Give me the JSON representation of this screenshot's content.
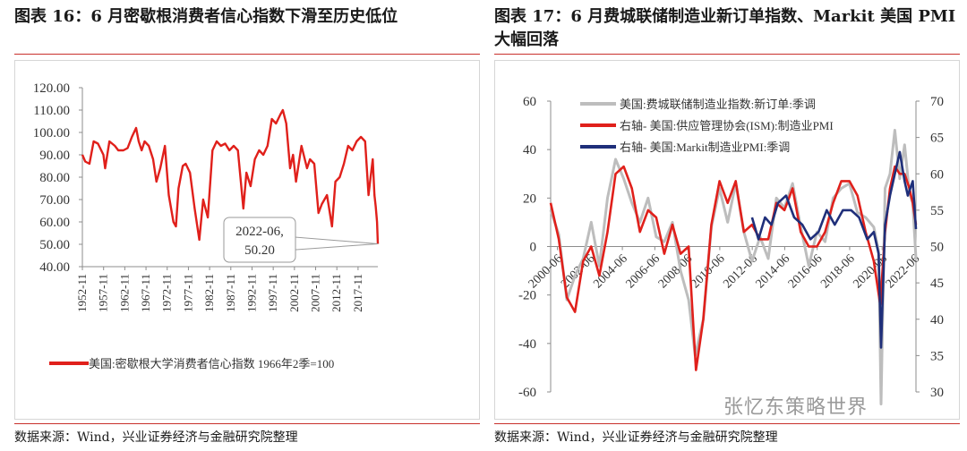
{
  "titles": {
    "left": "图表 16：6 月密歇根消费者信心指数下滑至历史低位",
    "right": "图表 17：6 月费城联储制造业新订单指数、Markit 美国 PMI 大幅回落"
  },
  "sources": {
    "left": "数据来源：Wind，兴业证券经济与金融研究院整理",
    "right": "数据来源：Wind，兴业证券经济与金融研究院整理"
  },
  "watermark": "张忆东策略世界",
  "colors": {
    "red": "#e0201b",
    "gray": "#bdbdbd",
    "navy": "#1f2f7a",
    "accent_rule": "#c9302c"
  },
  "chart_data": [
    {
      "type": "line",
      "title": "图表 16：6 月密歇根消费者信心指数下滑至历史低位",
      "ylim": [
        40,
        120
      ],
      "yticks": [
        "40.00",
        "50.00",
        "60.00",
        "70.00",
        "80.00",
        "90.00",
        "100.00",
        "110.00",
        "120.00"
      ],
      "xrange": [
        1952.83,
        2022.5
      ],
      "xticks": [
        "1952-11",
        "1957-11",
        "1962-11",
        "1967-11",
        "1972-11",
        "1977-11",
        "1982-11",
        "1987-11",
        "1992-11",
        "1997-11",
        "2002-11",
        "2007-11",
        "2012-11",
        "2017-11"
      ],
      "series": [
        {
          "name": "美国:密歇根大学消费者信心指数 1966年2季=100",
          "x": [
            1952.83,
            1953.5,
            1954.5,
            1955.5,
            1956.5,
            1957.8,
            1958.2,
            1959.2,
            1960.5,
            1961.3,
            1962.5,
            1963.5,
            1964.5,
            1965.5,
            1966.1,
            1966.8,
            1967.5,
            1968.5,
            1969.5,
            1970.3,
            1971.2,
            1972.3,
            1973.2,
            1974.3,
            1974.9,
            1975.5,
            1976.5,
            1977.2,
            1978.2,
            1979.3,
            1980.4,
            1981.3,
            1982.4,
            1983.5,
            1984.5,
            1985.5,
            1986.5,
            1987.5,
            1988.5,
            1989.5,
            1990.8,
            1991.5,
            1992.5,
            1993.5,
            1994.5,
            1995.5,
            1996.5,
            1997.5,
            1998.5,
            1999.5,
            2000.1,
            2000.9,
            2001.8,
            2002.5,
            2003.2,
            2004.5,
            2005.8,
            2006.5,
            2007.5,
            2008.5,
            2009.3,
            2010.5,
            2011.7,
            2012.5,
            2013.5,
            2014.5,
            2015.5,
            2016.5,
            2017.5,
            2018.5,
            2019.5,
            2020.3,
            2020.8,
            2021.3,
            2021.7,
            2022.0,
            2022.3,
            2022.5
          ],
          "y": [
            90,
            87,
            86,
            96,
            95,
            90,
            84,
            96,
            94,
            92,
            92,
            93,
            98,
            102,
            96,
            92,
            96,
            94,
            88,
            78,
            84,
            94,
            72,
            60,
            58,
            75,
            85,
            86,
            82,
            66,
            52,
            70,
            62,
            92,
            96,
            94,
            95,
            92,
            94,
            92,
            66,
            82,
            76,
            88,
            92,
            90,
            94,
            106,
            104,
            108,
            110,
            104,
            84,
            90,
            78,
            94,
            84,
            88,
            86,
            64,
            68,
            72,
            58,
            78,
            80,
            86,
            94,
            92,
            96,
            98,
            96,
            72,
            80,
            88,
            72,
            67,
            60,
            50.2
          ]
        }
      ],
      "annotation": {
        "date": "2022-06,",
        "value": "50.20"
      }
    },
    {
      "type": "line",
      "title": "图表 17：6 月费城联储制造业新订单指数、Markit 美国 PMI 大幅回落",
      "y_left": {
        "ylim": [
          -60,
          60
        ],
        "ticks": [
          "-60",
          "-40",
          "-20",
          "0",
          "20",
          "40",
          "60"
        ]
      },
      "y_right": {
        "ylim": [
          30,
          70
        ],
        "ticks": [
          "30",
          "35",
          "40",
          "45",
          "50",
          "55",
          "60",
          "65",
          "70"
        ]
      },
      "xrange": [
        2000.0,
        2022.5
      ],
      "xticks": [
        "2000-06",
        "2002-06",
        "2004-06",
        "2006-06",
        "2008-06",
        "2010-06",
        "2012-06",
        "2014-06",
        "2016-06",
        "2018-06",
        "2020-06",
        "2022-06"
      ],
      "series": [
        {
          "name": "美国:费城联储制造业指数:新订单:季调",
          "axis": "left",
          "x": [
            2000.0,
            2000.5,
            2001.0,
            2001.5,
            2002.0,
            2002.5,
            2003.0,
            2003.5,
            2004.0,
            2004.5,
            2005.0,
            2005.5,
            2006.0,
            2006.5,
            2007.0,
            2007.5,
            2008.0,
            2008.5,
            2008.9,
            2009.4,
            2009.9,
            2010.4,
            2010.9,
            2011.4,
            2011.9,
            2012.4,
            2012.9,
            2013.4,
            2013.9,
            2014.4,
            2014.9,
            2015.4,
            2015.9,
            2016.4,
            2016.9,
            2017.4,
            2017.9,
            2018.4,
            2018.9,
            2019.4,
            2019.9,
            2020.2,
            2020.35,
            2020.6,
            2020.9,
            2021.2,
            2021.5,
            2021.8,
            2022.1,
            2022.3,
            2022.5
          ],
          "y": [
            15,
            5,
            -22,
            -12,
            -5,
            10,
            -8,
            20,
            36,
            28,
            18,
            10,
            20,
            4,
            2,
            10,
            -10,
            -22,
            -45,
            -30,
            8,
            24,
            10,
            26,
            6,
            -6,
            4,
            -5,
            20,
            16,
            26,
            8,
            -8,
            6,
            2,
            20,
            24,
            26,
            14,
            12,
            8,
            -2,
            -65,
            24,
            30,
            48,
            28,
            42,
            22,
            18,
            -5
          ]
        },
        {
          "name": "右轴- 美国:供应管理协会(ISM):制造业PMI",
          "axis": "right",
          "x": [
            2000.0,
            2000.5,
            2001.0,
            2001.5,
            2002.0,
            2002.5,
            2003.0,
            2003.5,
            2004.0,
            2004.5,
            2005.0,
            2005.5,
            2006.0,
            2006.5,
            2007.0,
            2007.5,
            2008.0,
            2008.5,
            2008.95,
            2009.4,
            2009.9,
            2010.4,
            2010.9,
            2011.4,
            2011.9,
            2012.4,
            2012.9,
            2013.4,
            2013.9,
            2014.4,
            2014.9,
            2015.4,
            2015.9,
            2016.4,
            2016.9,
            2017.4,
            2017.9,
            2018.4,
            2018.9,
            2019.4,
            2019.9,
            2020.3,
            2020.6,
            2020.9,
            2021.2,
            2021.5,
            2021.8,
            2022.1,
            2022.3,
            2022.5
          ],
          "y": [
            56,
            51,
            43,
            41,
            48,
            50,
            46,
            52,
            60,
            61,
            58,
            52,
            55,
            54,
            49,
            53,
            49,
            50,
            33,
            40,
            53,
            59,
            56,
            59,
            52,
            53,
            51,
            51,
            56,
            55,
            58,
            52,
            50,
            50,
            52,
            56,
            59,
            59,
            57,
            52,
            48,
            42,
            52,
            58,
            61,
            60,
            60,
            58,
            56,
            53
          ]
        },
        {
          "name": "右轴- 美国:Markit制造业PMI:季调",
          "axis": "right",
          "x": [
            2012.4,
            2012.8,
            2013.2,
            2013.6,
            2014.0,
            2014.5,
            2015.0,
            2015.5,
            2016.0,
            2016.5,
            2017.0,
            2017.5,
            2018.0,
            2018.5,
            2019.0,
            2019.5,
            2019.9,
            2020.2,
            2020.35,
            2020.6,
            2020.9,
            2021.2,
            2021.5,
            2021.8,
            2022.0,
            2022.3,
            2022.5
          ],
          "y": [
            54,
            51,
            54,
            53,
            56,
            57,
            54,
            53,
            51,
            52,
            55,
            53,
            55,
            55,
            54,
            51,
            52,
            49,
            36.1,
            53,
            57,
            60,
            63,
            59,
            57,
            59,
            52.4
          ]
        }
      ]
    }
  ]
}
